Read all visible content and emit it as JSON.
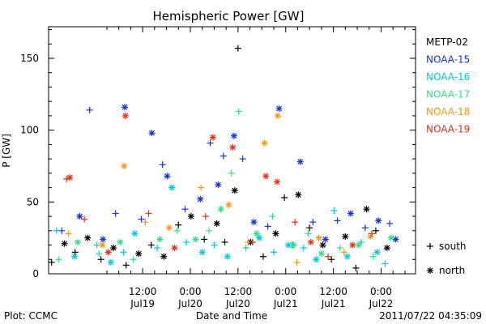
{
  "chart_data": {
    "type": "scatter",
    "title": "Hemispheric Power [GW]",
    "xlabel": "Date and Time",
    "ylabel": "P [GW]",
    "xlim": [
      "2011-07-18 12:20",
      "2011-07-22 08:40"
    ],
    "ylim": [
      0,
      172
    ],
    "grid": false,
    "legend_placement": "right",
    "x_ticks": [
      {
        "at": "2011-07-19 12:00",
        "top": "12:00",
        "bottom": "Jul19"
      },
      {
        "at": "2011-07-20 00:00",
        "top": "0:00",
        "bottom": "Jul20"
      },
      {
        "at": "2011-07-20 12:00",
        "top": "12:00",
        "bottom": "Jul20"
      },
      {
        "at": "2011-07-21 00:00",
        "top": "0:00",
        "bottom": "Jul21"
      },
      {
        "at": "2011-07-21 12:00",
        "top": "12:00",
        "bottom": "Jul21"
      },
      {
        "at": "2011-07-22 00:00",
        "top": "0:00",
        "bottom": "Jul22"
      }
    ],
    "y_ticks": [
      0,
      50,
      100,
      150
    ],
    "marker_legend": [
      {
        "symbol": "+",
        "label": "south"
      },
      {
        "symbol": "*",
        "label": "north"
      }
    ],
    "series": [
      {
        "name": "METP-02",
        "color": "#000000",
        "points": [
          {
            "x": "2011-07-18 13:05",
            "y": 8,
            "m": "+"
          },
          {
            "x": "2011-07-18 16:20",
            "y": 21,
            "m": "*"
          },
          {
            "x": "2011-07-18 19:00",
            "y": 15,
            "m": "+"
          },
          {
            "x": "2011-07-18 22:10",
            "y": 25,
            "m": "*"
          },
          {
            "x": "2011-07-19 01:30",
            "y": 10,
            "m": "+"
          },
          {
            "x": "2011-07-19 04:40",
            "y": 18,
            "m": "*"
          },
          {
            "x": "2011-07-19 07:50",
            "y": 6,
            "m": "+"
          },
          {
            "x": "2011-07-19 11:00",
            "y": 14,
            "m": "*"
          },
          {
            "x": "2011-07-19 14:10",
            "y": 20,
            "m": "+"
          },
          {
            "x": "2011-07-19 17:20",
            "y": 12,
            "m": "*"
          },
          {
            "x": "2011-07-19 21:00",
            "y": 34,
            "m": "+"
          },
          {
            "x": "2011-07-20 00:10",
            "y": 40,
            "m": "*"
          },
          {
            "x": "2011-07-20 03:30",
            "y": 24,
            "m": "+"
          },
          {
            "x": "2011-07-20 06:40",
            "y": 35,
            "m": "*"
          },
          {
            "x": "2011-07-20 08:40",
            "y": 22,
            "m": "+"
          },
          {
            "x": "2011-07-20 11:10",
            "y": 58,
            "m": "*"
          },
          {
            "x": "2011-07-20 12:00",
            "y": 157,
            "m": "+"
          },
          {
            "x": "2011-07-20 15:10",
            "y": 22,
            "m": "*"
          },
          {
            "x": "2011-07-20 18:20",
            "y": 12,
            "m": "+"
          },
          {
            "x": "2011-07-20 21:30",
            "y": 28,
            "m": "*"
          },
          {
            "x": "2011-07-20 23:40",
            "y": 53,
            "m": "+"
          },
          {
            "x": "2011-07-21 03:10",
            "y": 55,
            "m": "*"
          },
          {
            "x": "2011-07-21 06:00",
            "y": 32,
            "m": "+"
          },
          {
            "x": "2011-07-21 09:20",
            "y": 20,
            "m": "*"
          },
          {
            "x": "2011-07-21 11:30",
            "y": 10,
            "m": "+"
          },
          {
            "x": "2011-07-21 15:00",
            "y": 26,
            "m": "*"
          },
          {
            "x": "2011-07-21 17:40",
            "y": 4,
            "m": "+"
          },
          {
            "x": "2011-07-21 20:20",
            "y": 45,
            "m": "*"
          },
          {
            "x": "2011-07-21 22:40",
            "y": 30,
            "m": "+"
          },
          {
            "x": "2011-07-22 01:30",
            "y": 18,
            "m": "*"
          }
        ]
      },
      {
        "name": "NOAA-15",
        "color": "#1a33cc",
        "points": [
          {
            "x": "2011-07-18 15:40",
            "y": 30,
            "m": "+"
          },
          {
            "x": "2011-07-18 20:10",
            "y": 40,
            "m": "*"
          },
          {
            "x": "2011-07-18 22:40",
            "y": 114,
            "m": "+"
          },
          {
            "x": "2011-07-19 02:00",
            "y": 24,
            "m": "*"
          },
          {
            "x": "2011-07-19 05:10",
            "y": 42,
            "m": "+"
          },
          {
            "x": "2011-07-19 07:30",
            "y": 116,
            "m": "*"
          },
          {
            "x": "2011-07-19 11:40",
            "y": 38,
            "m": "+"
          },
          {
            "x": "2011-07-19 14:20",
            "y": 98,
            "m": "*"
          },
          {
            "x": "2011-07-19 17:00",
            "y": 76,
            "m": "+"
          },
          {
            "x": "2011-07-19 18:10",
            "y": 68,
            "m": "*"
          },
          {
            "x": "2011-07-19 22:40",
            "y": 45,
            "m": "+"
          },
          {
            "x": "2011-07-20 02:30",
            "y": 52,
            "m": "*"
          },
          {
            "x": "2011-07-20 05:00",
            "y": 91,
            "m": "+"
          },
          {
            "x": "2011-07-20 07:00",
            "y": 62,
            "m": "*"
          },
          {
            "x": "2011-07-20 08:20",
            "y": 82,
            "m": "+"
          },
          {
            "x": "2011-07-20 11:00",
            "y": 96,
            "m": "*"
          },
          {
            "x": "2011-07-20 13:10",
            "y": 80,
            "m": "+"
          },
          {
            "x": "2011-07-20 16:00",
            "y": 36,
            "m": "*"
          },
          {
            "x": "2011-07-20 19:30",
            "y": 33,
            "m": "+"
          },
          {
            "x": "2011-07-20 22:20",
            "y": 115,
            "m": "*"
          },
          {
            "x": "2011-07-21 01:40",
            "y": 20,
            "m": "+"
          },
          {
            "x": "2011-07-21 03:40",
            "y": 78,
            "m": "*"
          },
          {
            "x": "2011-07-21 06:50",
            "y": 36,
            "m": "+"
          },
          {
            "x": "2011-07-21 10:00",
            "y": 24,
            "m": "*"
          },
          {
            "x": "2011-07-21 13:00",
            "y": 37,
            "m": "+"
          },
          {
            "x": "2011-07-21 16:20",
            "y": 42,
            "m": "*"
          },
          {
            "x": "2011-07-21 20:00",
            "y": 32,
            "m": "+"
          },
          {
            "x": "2011-07-21 23:20",
            "y": 37,
            "m": "*"
          },
          {
            "x": "2011-07-22 02:10",
            "y": 35,
            "m": "+"
          },
          {
            "x": "2011-07-22 03:40",
            "y": 24,
            "m": "*"
          }
        ]
      },
      {
        "name": "NOAA-16",
        "color": "#00c8d8",
        "points": [
          {
            "x": "2011-07-18 14:20",
            "y": 30,
            "m": "+"
          },
          {
            "x": "2011-07-18 18:50",
            "y": 12,
            "m": "*"
          },
          {
            "x": "2011-07-19 00:30",
            "y": 20,
            "m": "+"
          },
          {
            "x": "2011-07-19 04:00",
            "y": 8,
            "m": "*"
          },
          {
            "x": "2011-07-19 07:10",
            "y": 15,
            "m": "+"
          },
          {
            "x": "2011-07-19 10:00",
            "y": 28,
            "m": "*"
          },
          {
            "x": "2011-07-19 15:40",
            "y": 18,
            "m": "+"
          },
          {
            "x": "2011-07-19 19:20",
            "y": 60,
            "m": "*"
          },
          {
            "x": "2011-07-19 23:00",
            "y": 22,
            "m": "+"
          },
          {
            "x": "2011-07-20 03:00",
            "y": 15,
            "m": "*"
          },
          {
            "x": "2011-07-20 06:00",
            "y": 20,
            "m": "+"
          },
          {
            "x": "2011-07-20 09:20",
            "y": 12,
            "m": "*"
          },
          {
            "x": "2011-07-20 14:00",
            "y": 18,
            "m": "+"
          },
          {
            "x": "2011-07-20 17:20",
            "y": 25,
            "m": "*"
          },
          {
            "x": "2011-07-20 21:00",
            "y": 15,
            "m": "+"
          },
          {
            "x": "2011-07-21 00:40",
            "y": 20,
            "m": "*"
          },
          {
            "x": "2011-07-21 04:30",
            "y": 18,
            "m": "+"
          },
          {
            "x": "2011-07-21 07:40",
            "y": 10,
            "m": "*"
          },
          {
            "x": "2011-07-21 12:10",
            "y": 44,
            "m": "+"
          },
          {
            "x": "2011-07-21 15:30",
            "y": 12,
            "m": "*"
          },
          {
            "x": "2011-07-21 19:00",
            "y": 22,
            "m": "+"
          },
          {
            "x": "2011-07-21 23:00",
            "y": 15,
            "m": "*"
          },
          {
            "x": "2011-07-22 01:00",
            "y": 7,
            "m": "+"
          }
        ]
      },
      {
        "name": "NOAA-17",
        "color": "#33dd88",
        "points": [
          {
            "x": "2011-07-18 14:50",
            "y": 10,
            "m": "+"
          },
          {
            "x": "2011-07-18 19:40",
            "y": 22,
            "m": "*"
          },
          {
            "x": "2011-07-19 01:00",
            "y": 14,
            "m": "+"
          },
          {
            "x": "2011-07-19 06:20",
            "y": 22,
            "m": "*"
          },
          {
            "x": "2011-07-19 09:40",
            "y": 10,
            "m": "+"
          },
          {
            "x": "2011-07-19 16:20",
            "y": 24,
            "m": "*"
          },
          {
            "x": "2011-07-19 20:40",
            "y": 30,
            "m": "+"
          },
          {
            "x": "2011-07-20 01:20",
            "y": 24,
            "m": "*"
          },
          {
            "x": "2011-07-20 04:40",
            "y": 30,
            "m": "+"
          },
          {
            "x": "2011-07-20 07:40",
            "y": 45,
            "m": "*"
          },
          {
            "x": "2011-07-20 10:20",
            "y": 70,
            "m": "+"
          },
          {
            "x": "2011-07-20 12:10",
            "y": 113,
            "m": "+"
          },
          {
            "x": "2011-07-20 16:40",
            "y": 28,
            "m": "*"
          },
          {
            "x": "2011-07-20 20:40",
            "y": 40,
            "m": "+"
          },
          {
            "x": "2011-07-21 02:00",
            "y": 20,
            "m": "*"
          },
          {
            "x": "2011-07-21 05:40",
            "y": 28,
            "m": "+"
          },
          {
            "x": "2011-07-21 09:00",
            "y": 14,
            "m": "*"
          },
          {
            "x": "2011-07-21 13:40",
            "y": 18,
            "m": "+"
          },
          {
            "x": "2011-07-21 18:20",
            "y": 20,
            "m": "*"
          },
          {
            "x": "2011-07-21 22:00",
            "y": 12,
            "m": "+"
          },
          {
            "x": "2011-07-22 02:30",
            "y": 25,
            "m": "*"
          }
        ]
      },
      {
        "name": "NOAA-18",
        "color": "#f09a1a",
        "points": [
          {
            "x": "2011-07-18 17:20",
            "y": 28,
            "m": "+"
          },
          {
            "x": "2011-07-19 01:50",
            "y": 20,
            "m": "*"
          },
          {
            "x": "2011-07-19 07:20",
            "y": 75,
            "m": "*"
          },
          {
            "x": "2011-07-19 12:40",
            "y": 36,
            "m": "+"
          },
          {
            "x": "2011-07-19 18:40",
            "y": 32,
            "m": "*"
          },
          {
            "x": "2011-07-20 02:40",
            "y": 60,
            "m": "+"
          },
          {
            "x": "2011-07-20 09:40",
            "y": 48,
            "m": "*"
          },
          {
            "x": "2011-07-20 14:30",
            "y": 22,
            "m": "+"
          },
          {
            "x": "2011-07-20 18:40",
            "y": 91,
            "m": "*"
          },
          {
            "x": "2011-07-20 22:00",
            "y": 110,
            "m": "*"
          },
          {
            "x": "2011-07-21 02:50",
            "y": 8,
            "m": "+"
          },
          {
            "x": "2011-07-21 08:20",
            "y": 25,
            "m": "*"
          },
          {
            "x": "2011-07-21 14:40",
            "y": 15,
            "m": "+"
          },
          {
            "x": "2011-07-21 21:20",
            "y": 26,
            "m": "*"
          }
        ]
      },
      {
        "name": "NOAA-19",
        "color": "#e03018",
        "points": [
          {
            "x": "2011-07-18 16:50",
            "y": 66,
            "m": "+"
          },
          {
            "x": "2011-07-18 17:40",
            "y": 67,
            "m": "*"
          },
          {
            "x": "2011-07-18 21:20",
            "y": 38,
            "m": "+"
          },
          {
            "x": "2011-07-19 03:20",
            "y": 15,
            "m": "*"
          },
          {
            "x": "2011-07-19 07:40",
            "y": 110,
            "m": "*"
          },
          {
            "x": "2011-07-19 13:30",
            "y": 42,
            "m": "+"
          },
          {
            "x": "2011-07-19 20:00",
            "y": 18,
            "m": "*"
          },
          {
            "x": "2011-07-20 03:50",
            "y": 40,
            "m": "+"
          },
          {
            "x": "2011-07-20 05:40",
            "y": 95,
            "m": "*"
          },
          {
            "x": "2011-07-20 10:40",
            "y": 88,
            "m": "*"
          },
          {
            "x": "2011-07-20 15:40",
            "y": 22,
            "m": "+"
          },
          {
            "x": "2011-07-20 19:00",
            "y": 68,
            "m": "*"
          },
          {
            "x": "2011-07-20 21:50",
            "y": 64,
            "m": "*"
          },
          {
            "x": "2011-07-21 02:20",
            "y": 36,
            "m": "+"
          },
          {
            "x": "2011-07-21 06:20",
            "y": 22,
            "m": "*"
          },
          {
            "x": "2011-07-21 10:40",
            "y": 12,
            "m": "+"
          },
          {
            "x": "2011-07-21 16:50",
            "y": 20,
            "m": "*"
          },
          {
            "x": "2011-07-21 21:40",
            "y": 28,
            "m": "+"
          }
        ]
      }
    ]
  },
  "footer": {
    "left": "Plot: CCMC",
    "center": "Date and Time",
    "right": "2011/07/22 04:35:09"
  }
}
